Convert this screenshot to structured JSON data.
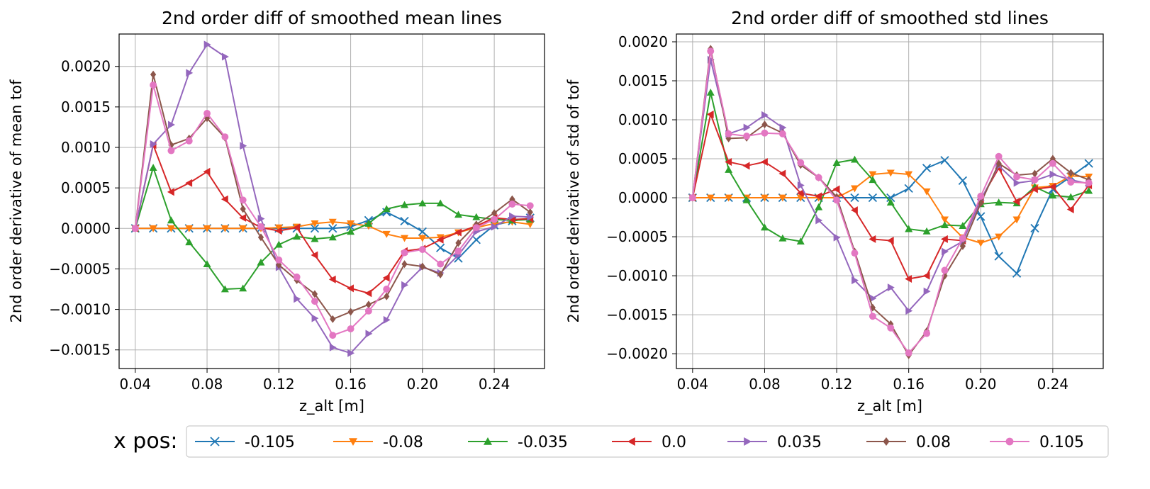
{
  "legend": {
    "title": "x pos:",
    "items": [
      "-0.105",
      "-0.08",
      "-0.035",
      "0.0",
      "0.035",
      "0.08",
      "0.105"
    ]
  },
  "series_style": [
    {
      "color": "#1f77b4",
      "marker": "x"
    },
    {
      "color": "#ff7f0e",
      "marker": "triangle-down"
    },
    {
      "color": "#2ca02c",
      "marker": "triangle-up"
    },
    {
      "color": "#d62728",
      "marker": "triangle-left"
    },
    {
      "color": "#9467bd",
      "marker": "triangle-right"
    },
    {
      "color": "#8c564b",
      "marker": "diamond"
    },
    {
      "color": "#e377c2",
      "marker": "circle"
    }
  ],
  "chart_data": [
    {
      "type": "line",
      "title": "2nd order diff of smoothed mean lines",
      "xlabel": "z_alt [m]",
      "ylabel": "2nd order derivative of mean tof",
      "xlim": [
        0.031,
        0.268
      ],
      "ylim": [
        -0.00173,
        0.0024
      ],
      "xticks": [
        0.04,
        0.08,
        0.12,
        0.16,
        0.2,
        0.24
      ],
      "xtick_labels": [
        "0.04",
        "0.08",
        "0.12",
        "0.16",
        "0.20",
        "0.24"
      ],
      "yticks": [
        -0.0015,
        -0.001,
        -0.0005,
        0.0,
        0.0005,
        0.001,
        0.0015,
        0.002
      ],
      "ytick_labels": [
        "−0.0015",
        "−0.0010",
        "−0.0005",
        "0.0000",
        "0.0005",
        "0.0010",
        "0.0015",
        "0.0020"
      ],
      "grid": true,
      "x": [
        0.04,
        0.05,
        0.06,
        0.07,
        0.08,
        0.09,
        0.1,
        0.11,
        0.12,
        0.13,
        0.14,
        0.15,
        0.16,
        0.17,
        0.18,
        0.19,
        0.2,
        0.21,
        0.22,
        0.23,
        0.24,
        0.25,
        0.26
      ],
      "series": [
        {
          "name": "-0.105",
          "values": [
            0,
            0,
            0,
            0,
            0,
            0,
            0,
            0,
            0,
            0,
            0,
            0,
            2e-05,
            0.0001,
            0.0002,
            9e-05,
            -4e-05,
            -0.00024,
            -0.00037,
            -0.00014,
            4e-05,
            9e-05,
            0.00013
          ]
        },
        {
          "name": "-0.08",
          "values": [
            0,
            0,
            0,
            0,
            0,
            0,
            0,
            0,
            1e-05,
            2e-05,
            6e-05,
            8e-05,
            6e-05,
            3e-05,
            -7e-05,
            -0.00012,
            -0.00012,
            -0.00011,
            -5e-05,
            1e-05,
            6e-05,
            8e-05,
            5e-05
          ]
        },
        {
          "name": "-0.035",
          "values": [
            0,
            0.00075,
            0.0001,
            -0.00017,
            -0.00044,
            -0.00075,
            -0.00074,
            -0.00042,
            -0.0002,
            -0.0001,
            -0.00013,
            -0.00011,
            -4e-05,
            6e-05,
            0.00024,
            0.00029,
            0.00031,
            0.00031,
            0.00017,
            0.00014,
            0.00011,
            0.0001,
            0.00011
          ]
        },
        {
          "name": "0.0",
          "values": [
            0,
            0.00103,
            0.00045,
            0.00056,
            0.0007,
            0.00036,
            0.00013,
            1e-05,
            -3e-05,
            1e-05,
            -0.00033,
            -0.00063,
            -0.00074,
            -0.0008,
            -0.00061,
            -0.00028,
            -0.00025,
            -0.00014,
            -5e-05,
            3e-05,
            0.00013,
            0.00011,
            0.00012
          ]
        },
        {
          "name": "0.035",
          "values": [
            0,
            0.00104,
            0.00128,
            0.00192,
            0.00227,
            0.00212,
            0.00102,
            0.00012,
            -0.00048,
            -0.00087,
            -0.00111,
            -0.00147,
            -0.00154,
            -0.0013,
            -0.00113,
            -0.0007,
            -0.00048,
            -0.00055,
            -0.00033,
            -4e-05,
            2e-05,
            0.00015,
            0.00014
          ]
        },
        {
          "name": "0.08",
          "values": [
            0,
            0.0019,
            0.00103,
            0.00111,
            0.00136,
            0.00112,
            0.00024,
            -0.00011,
            -0.00045,
            -0.00064,
            -0.00081,
            -0.00112,
            -0.00103,
            -0.00094,
            -0.00084,
            -0.00044,
            -0.00047,
            -0.00057,
            -0.00018,
            5e-05,
            0.00019,
            0.00036,
            0.0002
          ]
        },
        {
          "name": "0.105",
          "values": [
            0,
            0.00177,
            0.00096,
            0.00108,
            0.00142,
            0.00113,
            0.00035,
            2e-05,
            -0.00039,
            -0.0006,
            -0.0009,
            -0.00132,
            -0.00124,
            -0.00102,
            -0.00075,
            -0.0003,
            -0.00026,
            -0.00044,
            -0.00028,
            1e-05,
            0.00011,
            0.0003,
            0.00028
          ]
        }
      ]
    },
    {
      "type": "line",
      "title": "2nd order diff of smoothed std lines",
      "xlabel": "z_alt [m]",
      "ylabel": "2nd order derivative of std of tof",
      "xlim": [
        0.031,
        0.268
      ],
      "ylim": [
        -0.00219,
        0.0021
      ],
      "xticks": [
        0.04,
        0.08,
        0.12,
        0.16,
        0.2,
        0.24
      ],
      "xtick_labels": [
        "0.04",
        "0.08",
        "0.12",
        "0.16",
        "0.20",
        "0.24"
      ],
      "yticks": [
        -0.002,
        -0.0015,
        -0.001,
        -0.0005,
        0.0,
        0.0005,
        0.001,
        0.0015,
        0.002
      ],
      "ytick_labels": [
        "−0.0020",
        "−0.0015",
        "−0.0010",
        "−0.0005",
        "0.0000",
        "0.0005",
        "0.0010",
        "0.0015",
        "0.0020"
      ],
      "grid": true,
      "x": [
        0.04,
        0.05,
        0.06,
        0.07,
        0.08,
        0.09,
        0.1,
        0.11,
        0.12,
        0.13,
        0.14,
        0.15,
        0.16,
        0.17,
        0.18,
        0.19,
        0.2,
        0.21,
        0.22,
        0.23,
        0.24,
        0.25,
        0.26
      ],
      "series": [
        {
          "name": "-0.105",
          "values": [
            0,
            0,
            0,
            0,
            0,
            0,
            0,
            0,
            0,
            0,
            0,
            0,
            0.00012,
            0.00038,
            0.00048,
            0.00022,
            -0.00024,
            -0.00075,
            -0.00097,
            -0.00039,
            0.00011,
            0.00027,
            0.00044
          ]
        },
        {
          "name": "-0.08",
          "values": [
            0,
            0,
            0,
            0,
            0,
            0,
            0,
            0,
            0,
            0.00012,
            0.0003,
            0.00032,
            0.0003,
            8e-05,
            -0.00028,
            -0.00051,
            -0.00058,
            -0.0005,
            -0.00028,
            0.00013,
            0.00015,
            0.00028,
            0.00027
          ]
        },
        {
          "name": "-0.035",
          "values": [
            0,
            0.00135,
            0.00036,
            -3e-05,
            -0.00038,
            -0.00052,
            -0.00056,
            -0.00012,
            0.00045,
            0.00049,
            0.00023,
            -6e-05,
            -0.0004,
            -0.00043,
            -0.00035,
            -0.00036,
            -8e-05,
            -6e-05,
            -7e-05,
            0.00014,
            3e-05,
            1e-05,
            9e-05
          ]
        },
        {
          "name": "0.0",
          "values": [
            0,
            0.00107,
            0.00046,
            0.00041,
            0.00046,
            0.00031,
            6e-05,
            2e-05,
            0.00011,
            -0.00016,
            -0.00053,
            -0.00055,
            -0.00104,
            -0.001,
            -0.00053,
            -0.00055,
            -2e-05,
            0.00038,
            -5e-05,
            0.00011,
            0.00014,
            -0.00015,
            0.00016
          ]
        },
        {
          "name": "0.035",
          "values": [
            0,
            0.00177,
            0.00082,
            0.0009,
            0.00106,
            0.0009,
            0.00016,
            -0.00029,
            -0.00051,
            -0.00106,
            -0.00129,
            -0.00115,
            -0.00145,
            -0.0012,
            -0.00069,
            -0.00056,
            -3e-05,
            0.00041,
            0.00019,
            0.00022,
            0.0003,
            0.00023,
            0.00018
          ]
        },
        {
          "name": "0.08",
          "values": [
            0,
            0.00191,
            0.00076,
            0.00077,
            0.00094,
            0.00083,
            0.00042,
            0.00026,
            1e-05,
            -0.00069,
            -0.00141,
            -0.00162,
            -0.00202,
            -0.00171,
            -0.001,
            -0.00062,
            -7e-05,
            0.00044,
            0.00029,
            0.00031,
            0.0005,
            0.00032,
            0.00023
          ]
        },
        {
          "name": "0.105",
          "values": [
            0,
            0.00188,
            0.00082,
            0.00079,
            0.00083,
            0.00082,
            0.00045,
            0.00026,
            -3e-05,
            -0.00071,
            -0.00152,
            -0.00167,
            -0.00199,
            -0.00174,
            -0.00093,
            -0.00052,
            2e-05,
            0.00053,
            0.00027,
            0.00023,
            0.00044,
            0.0002,
            0.00019
          ]
        }
      ]
    }
  ]
}
